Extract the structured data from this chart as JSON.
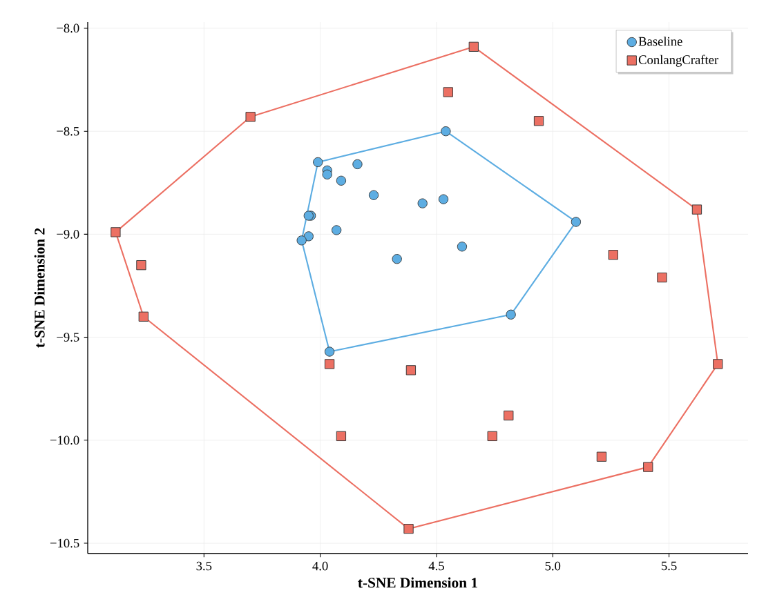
{
  "chart_data": {
    "type": "scatter",
    "xlabel": "t-SNE Dimension 1",
    "ylabel": "t-SNE Dimension 2",
    "xlim": [
      3.0,
      5.84
    ],
    "ylim": [
      -10.55,
      -7.97
    ],
    "xticks": [
      {
        "value": 3.5,
        "label": "3.5"
      },
      {
        "value": 4.0,
        "label": "4.0"
      },
      {
        "value": 4.5,
        "label": "4.5"
      },
      {
        "value": 5.0,
        "label": "5.0"
      },
      {
        "value": 5.5,
        "label": "5.5"
      }
    ],
    "yticks": [
      {
        "value": -10.5,
        "label": "−10.5"
      },
      {
        "value": -10.0,
        "label": "−10.0"
      },
      {
        "value": -9.5,
        "label": "−9.5"
      },
      {
        "value": -9.0,
        "label": "−9.0"
      },
      {
        "value": -8.5,
        "label": "−8.5"
      },
      {
        "value": -8.0,
        "label": "−8.0"
      }
    ],
    "grid": true,
    "legend": "top right",
    "series": [
      {
        "name": "Baseline",
        "marker": "circle",
        "color": "#5dade2",
        "x": [
          4.54,
          3.99,
          4.03,
          4.03,
          4.09,
          4.16,
          4.23,
          4.44,
          4.53,
          3.96,
          3.95,
          4.07,
          3.95,
          3.92,
          4.33,
          4.61,
          5.1,
          4.82,
          4.04
        ],
        "values": [
          -8.5,
          -8.65,
          -8.69,
          -8.71,
          -8.74,
          -8.66,
          -8.81,
          -8.85,
          -8.83,
          -8.91,
          -8.91,
          -8.98,
          -9.01,
          -9.03,
          -9.12,
          -9.06,
          -8.94,
          -9.39,
          -9.57
        ]
      },
      {
        "name": "ConlangCrafter",
        "marker": "square",
        "color": "#ec7063",
        "x": [
          4.66,
          4.55,
          3.7,
          4.94,
          3.12,
          5.62,
          5.26,
          3.23,
          5.47,
          3.24,
          5.71,
          4.04,
          4.39,
          4.81,
          4.09,
          4.74,
          5.21,
          5.41,
          4.38
        ],
        "values": [
          -8.09,
          -8.31,
          -8.43,
          -8.45,
          -8.99,
          -8.88,
          -9.1,
          -9.15,
          -9.21,
          -9.4,
          -9.63,
          -9.63,
          -9.66,
          -9.88,
          -9.98,
          -9.98,
          -10.08,
          -10.13,
          -10.43
        ]
      },
      {
        "type": "line",
        "color": "#5dade2",
        "x": [
          3.92,
          3.99,
          4.54,
          5.1
        ],
        "values": [
          -9.03,
          -8.65,
          -8.5,
          -8.94
        ]
      },
      {
        "type": "line",
        "color": "#5dade2",
        "x": [
          3.92,
          4.04,
          4.82,
          5.1
        ],
        "values": [
          -9.03,
          -9.57,
          -9.39,
          -8.94
        ]
      },
      {
        "type": "line",
        "color": "#ec7063",
        "x": [
          3.12,
          3.7,
          4.66,
          5.62,
          5.71
        ],
        "values": [
          -8.99,
          -8.43,
          -8.09,
          -8.88,
          -9.63
        ]
      },
      {
        "type": "line",
        "color": "#ec7063",
        "x": [
          3.12,
          3.24,
          4.38,
          5.41,
          5.71
        ],
        "values": [
          -8.99,
          -9.4,
          -10.43,
          -10.13,
          -9.63
        ]
      }
    ]
  }
}
